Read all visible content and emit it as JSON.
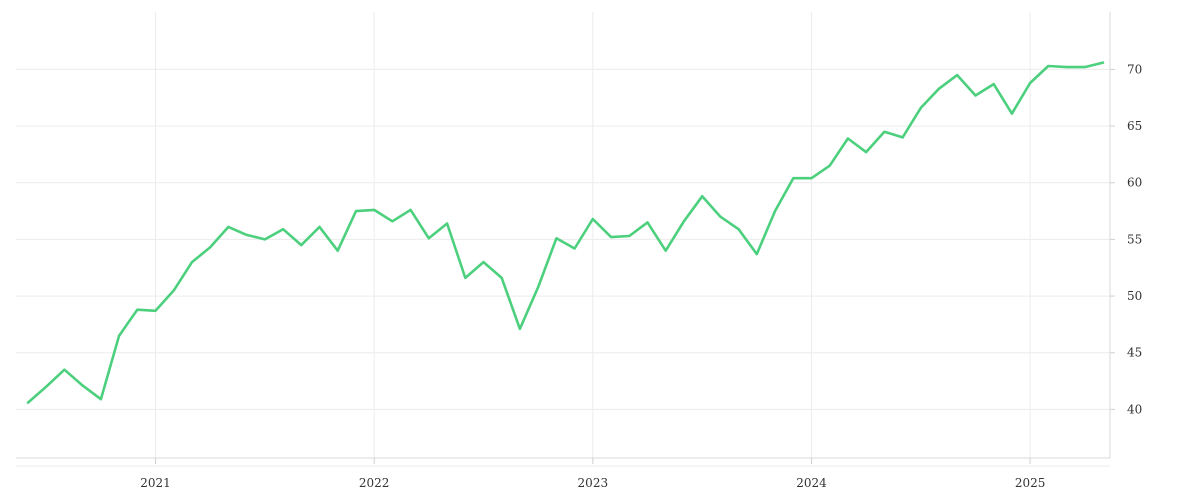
{
  "chart_data": {
    "type": "line",
    "title": "",
    "xlabel": "",
    "ylabel": "",
    "x_ticks": [
      "2021",
      "2022",
      "2023",
      "2024",
      "2025"
    ],
    "y_ticks": [
      40,
      45,
      50,
      55,
      60,
      65,
      70
    ],
    "ylim": [
      35,
      75
    ],
    "xlim": [
      "2020-06",
      "2025-05"
    ],
    "y_axis_position": "right",
    "grid": true,
    "legend": "none",
    "series": [
      {
        "color": "#4cd07d",
        "points": [
          [
            "2020-06",
            40.6
          ],
          [
            "2020-07",
            42.0
          ],
          [
            "2020-08",
            43.5
          ],
          [
            "2020-09",
            42.1
          ],
          [
            "2020-10",
            40.9
          ],
          [
            "2020-11",
            46.5
          ],
          [
            "2020-12",
            48.8
          ],
          [
            "2021-01",
            48.7
          ],
          [
            "2021-02",
            50.5
          ],
          [
            "2021-03",
            53.0
          ],
          [
            "2021-04",
            54.3
          ],
          [
            "2021-05",
            56.1
          ],
          [
            "2021-06",
            55.4
          ],
          [
            "2021-07",
            55.0
          ],
          [
            "2021-08",
            55.9
          ],
          [
            "2021-09",
            54.5
          ],
          [
            "2021-10",
            56.1
          ],
          [
            "2021-11",
            54.0
          ],
          [
            "2021-12",
            57.5
          ],
          [
            "2022-01",
            57.6
          ],
          [
            "2022-02",
            56.6
          ],
          [
            "2022-03",
            57.6
          ],
          [
            "2022-04",
            55.1
          ],
          [
            "2022-05",
            56.4
          ],
          [
            "2022-06",
            51.6
          ],
          [
            "2022-07",
            53.0
          ],
          [
            "2022-08",
            51.6
          ],
          [
            "2022-09",
            47.1
          ],
          [
            "2022-10",
            50.8
          ],
          [
            "2022-11",
            55.1
          ],
          [
            "2022-12",
            54.2
          ],
          [
            "2023-01",
            56.8
          ],
          [
            "2023-02",
            55.2
          ],
          [
            "2023-03",
            55.3
          ],
          [
            "2023-04",
            56.5
          ],
          [
            "2023-05",
            54.0
          ],
          [
            "2023-06",
            56.6
          ],
          [
            "2023-07",
            58.8
          ],
          [
            "2023-08",
            57.0
          ],
          [
            "2023-09",
            55.9
          ],
          [
            "2023-10",
            53.7
          ],
          [
            "2023-11",
            57.5
          ],
          [
            "2023-12",
            60.4
          ],
          [
            "2024-01",
            60.4
          ],
          [
            "2024-02",
            61.5
          ],
          [
            "2024-03",
            63.9
          ],
          [
            "2024-04",
            62.7
          ],
          [
            "2024-05",
            64.5
          ],
          [
            "2024-06",
            64.0
          ],
          [
            "2024-07",
            66.6
          ],
          [
            "2024-08",
            68.3
          ],
          [
            "2024-09",
            69.5
          ],
          [
            "2024-10",
            67.7
          ],
          [
            "2024-11",
            68.7
          ],
          [
            "2024-12",
            66.1
          ],
          [
            "2025-01",
            68.8
          ],
          [
            "2025-02",
            70.3
          ],
          [
            "2025-03",
            70.2
          ],
          [
            "2025-04",
            70.2
          ],
          [
            "2025-05",
            70.6
          ]
        ]
      }
    ]
  }
}
